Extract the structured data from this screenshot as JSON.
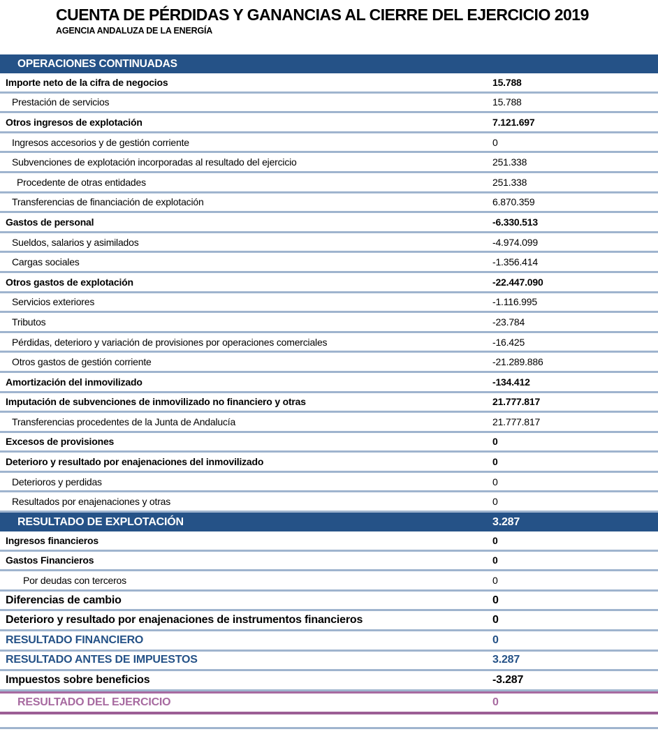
{
  "title": "CUENTA DE PÉRDIDAS Y GANANCIAS AL CIERRE DEL EJERCICIO 2019",
  "subtitle": "AGENCIA ANDALUZA DE LA ENERGÍA",
  "colors": {
    "band_blue": "#255287",
    "separator_blue": "#9FB4CE",
    "summary_text_blue": "#255287",
    "result_purple": "#A76AA0",
    "text_black": "#000000",
    "band_text_white": "#ffffff"
  },
  "table": {
    "section_header": "OPERACIONES CONTINUADAS",
    "rows": [
      {
        "label": "Importe neto de la cifra de negocios",
        "value": "15.788",
        "style": "section"
      },
      {
        "label": "Prestación de servicios",
        "value": "15.788",
        "style": "detail"
      },
      {
        "label": "Otros ingresos de explotación",
        "value": "7.121.697",
        "style": "section"
      },
      {
        "label": "Ingresos accesorios y de gestión corriente",
        "value": "0",
        "style": "detail"
      },
      {
        "label": "Subvenciones de explotación incorporadas al resultado del ejercicio",
        "value": "251.338",
        "style": "detail"
      },
      {
        "label": "Procedente de otras entidades",
        "value": "251.338",
        "style": "detail2"
      },
      {
        "label": "Transferencias de financiación de explotación",
        "value": "6.870.359",
        "style": "detail"
      },
      {
        "label": "Gastos de personal",
        "value": "-6.330.513",
        "style": "section"
      },
      {
        "label": "Sueldos, salarios y asimilados",
        "value": "-4.974.099",
        "style": "detail"
      },
      {
        "label": "Cargas sociales",
        "value": "-1.356.414",
        "style": "detail"
      },
      {
        "label": "Otros gastos de explotación",
        "value": "-22.447.090",
        "style": "section"
      },
      {
        "label": "Servicios exteriores",
        "value": "-1.116.995",
        "style": "detail"
      },
      {
        "label": "Tributos",
        "value": "-23.784",
        "style": "detail"
      },
      {
        "label": "Pérdidas, deterioro y variación de provisiones por operaciones comerciales",
        "value": "-16.425",
        "style": "detail"
      },
      {
        "label": "Otros gastos de gestión corriente",
        "value": "-21.289.886",
        "style": "detail"
      },
      {
        "label": "Amortización del inmovilizado",
        "value": "-134.412",
        "style": "section"
      },
      {
        "label": "Imputación de subvenciones de inmovilizado no financiero y otras",
        "value": "21.777.817",
        "style": "section"
      },
      {
        "label": "Transferencias procedentes de la Junta de Andalucía",
        "value": "21.777.817",
        "style": "detail"
      },
      {
        "label": "Excesos de provisiones",
        "value": "0",
        "style": "section"
      },
      {
        "label": "Deterioro y resultado por enajenaciones del inmovilizado",
        "value": "0",
        "style": "section"
      },
      {
        "label": "Deterioros y perdidas",
        "value": "0",
        "style": "detail"
      },
      {
        "label": "Resultados por enajenaciones y otras",
        "value": "0",
        "style": "detail"
      },
      {
        "label": "RESULTADO DE EXPLOTACIÓN",
        "value": "3.287",
        "style": "band"
      },
      {
        "label": "Ingresos financieros",
        "value": "0",
        "style": "section"
      },
      {
        "label": "Gastos Financieros",
        "value": "0",
        "style": "section"
      },
      {
        "label": "Por deudas con terceros",
        "value": "0",
        "style": "detail3"
      },
      {
        "label": "Diferencias de cambio",
        "value": "0",
        "style": "section-lg"
      },
      {
        "label": "Deterioro y resultado por enajenaciones de instrumentos financieros",
        "value": "0",
        "style": "section-lg"
      },
      {
        "label": "RESULTADO FINANCIERO",
        "value": "0",
        "style": "blue-lg"
      },
      {
        "label": "RESULTADO ANTES DE IMPUESTOS",
        "value": "3.287",
        "style": "blue-lg"
      },
      {
        "label": "Impuestos sobre beneficios",
        "value": "-3.287",
        "style": "section-lg"
      },
      {
        "label": "RESULTADO DEL EJERCICIO",
        "value": "0",
        "style": "purple"
      }
    ]
  }
}
